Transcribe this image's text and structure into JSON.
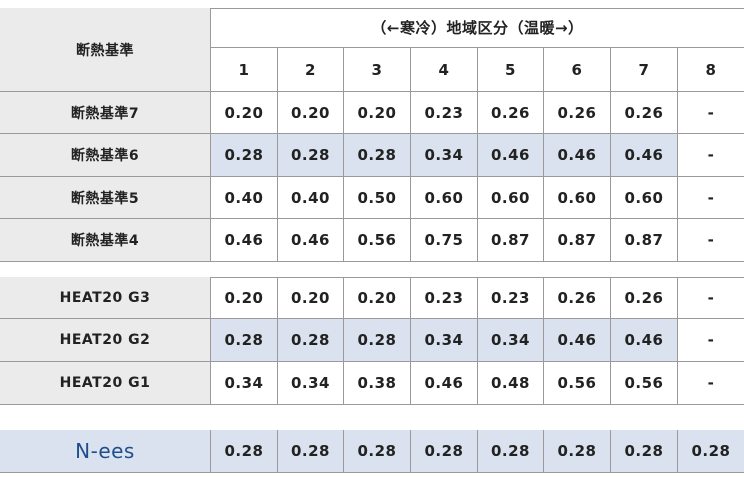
{
  "table": {
    "corner": "断熱基準",
    "header": "（←寒冷）地域区分（温暖→）",
    "columns": [
      "1",
      "2",
      "3",
      "4",
      "5",
      "6",
      "7",
      "8"
    ],
    "groups": [
      {
        "rows": [
          {
            "label": "断熱基準7",
            "values": [
              "0.20",
              "0.20",
              "0.20",
              "0.23",
              "0.26",
              "0.26",
              "0.26",
              "-"
            ]
          },
          {
            "label": "断熱基準6",
            "values": [
              "0.28",
              "0.28",
              "0.28",
              "0.34",
              "0.46",
              "0.46",
              "0.46",
              "-"
            ]
          },
          {
            "label": "断熱基準5",
            "values": [
              "0.40",
              "0.40",
              "0.50",
              "0.60",
              "0.60",
              "0.60",
              "0.60",
              "-"
            ]
          },
          {
            "label": "断熱基準4",
            "values": [
              "0.46",
              "0.46",
              "0.56",
              "0.75",
              "0.87",
              "0.87",
              "0.87",
              "-"
            ]
          }
        ]
      },
      {
        "rows": [
          {
            "label": "HEAT20 G3",
            "values": [
              "0.20",
              "0.20",
              "0.20",
              "0.23",
              "0.23",
              "0.26",
              "0.26",
              "-"
            ]
          },
          {
            "label": "HEAT20 G2",
            "values": [
              "0.28",
              "0.28",
              "0.28",
              "0.34",
              "0.34",
              "0.46",
              "0.46",
              "-"
            ]
          },
          {
            "label": "HEAT20 G1",
            "values": [
              "0.34",
              "0.34",
              "0.38",
              "0.46",
              "0.48",
              "0.56",
              "0.56",
              "-"
            ]
          }
        ]
      },
      {
        "rows": [
          {
            "label": "N-ees",
            "values": [
              "0.28",
              "0.28",
              "0.28",
              "0.28",
              "0.28",
              "0.28",
              "0.28",
              "0.28"
            ]
          }
        ]
      }
    ]
  }
}
